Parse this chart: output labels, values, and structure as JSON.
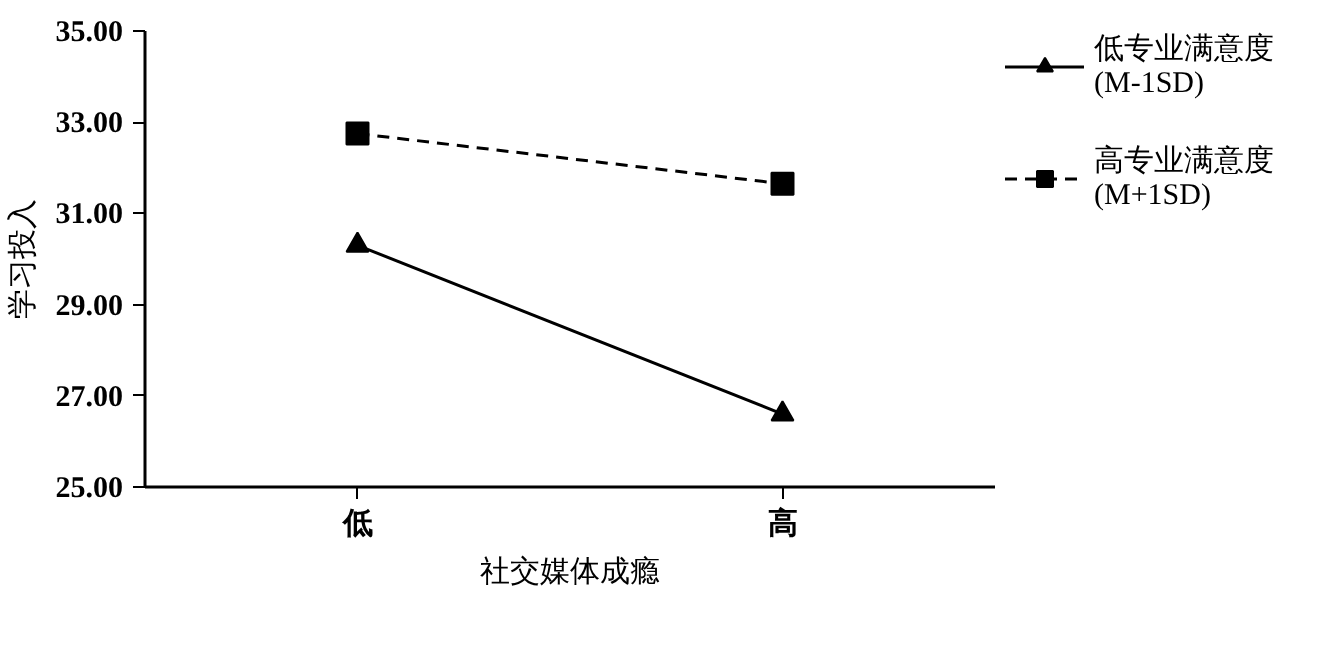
{
  "chart_data": {
    "type": "line",
    "xlabel": "社交媒体成瘾",
    "ylabel": "学习投入",
    "categories": [
      "低",
      "高"
    ],
    "series": [
      {
        "name": "低专业满意度\n(M-1SD)",
        "color": "#000000",
        "values": [
          30.3,
          26.6
        ],
        "marker": "triangle",
        "line_style": "solid"
      },
      {
        "name": "高专业满意度\n(M+1SD)",
        "color": "#000000",
        "values": [
          32.75,
          31.65
        ],
        "marker": "square",
        "line_style": "dashed"
      }
    ],
    "ylim": [
      25,
      35
    ],
    "yticks": [
      {
        "value": 25,
        "label": "25.00"
      },
      {
        "value": 27,
        "label": "27.00"
      },
      {
        "value": 29,
        "label": "29.00"
      },
      {
        "value": 31,
        "label": "31.00"
      },
      {
        "value": 33,
        "label": "33.00"
      },
      {
        "value": 35,
        "label": "35.00"
      }
    ],
    "legend": "right"
  }
}
